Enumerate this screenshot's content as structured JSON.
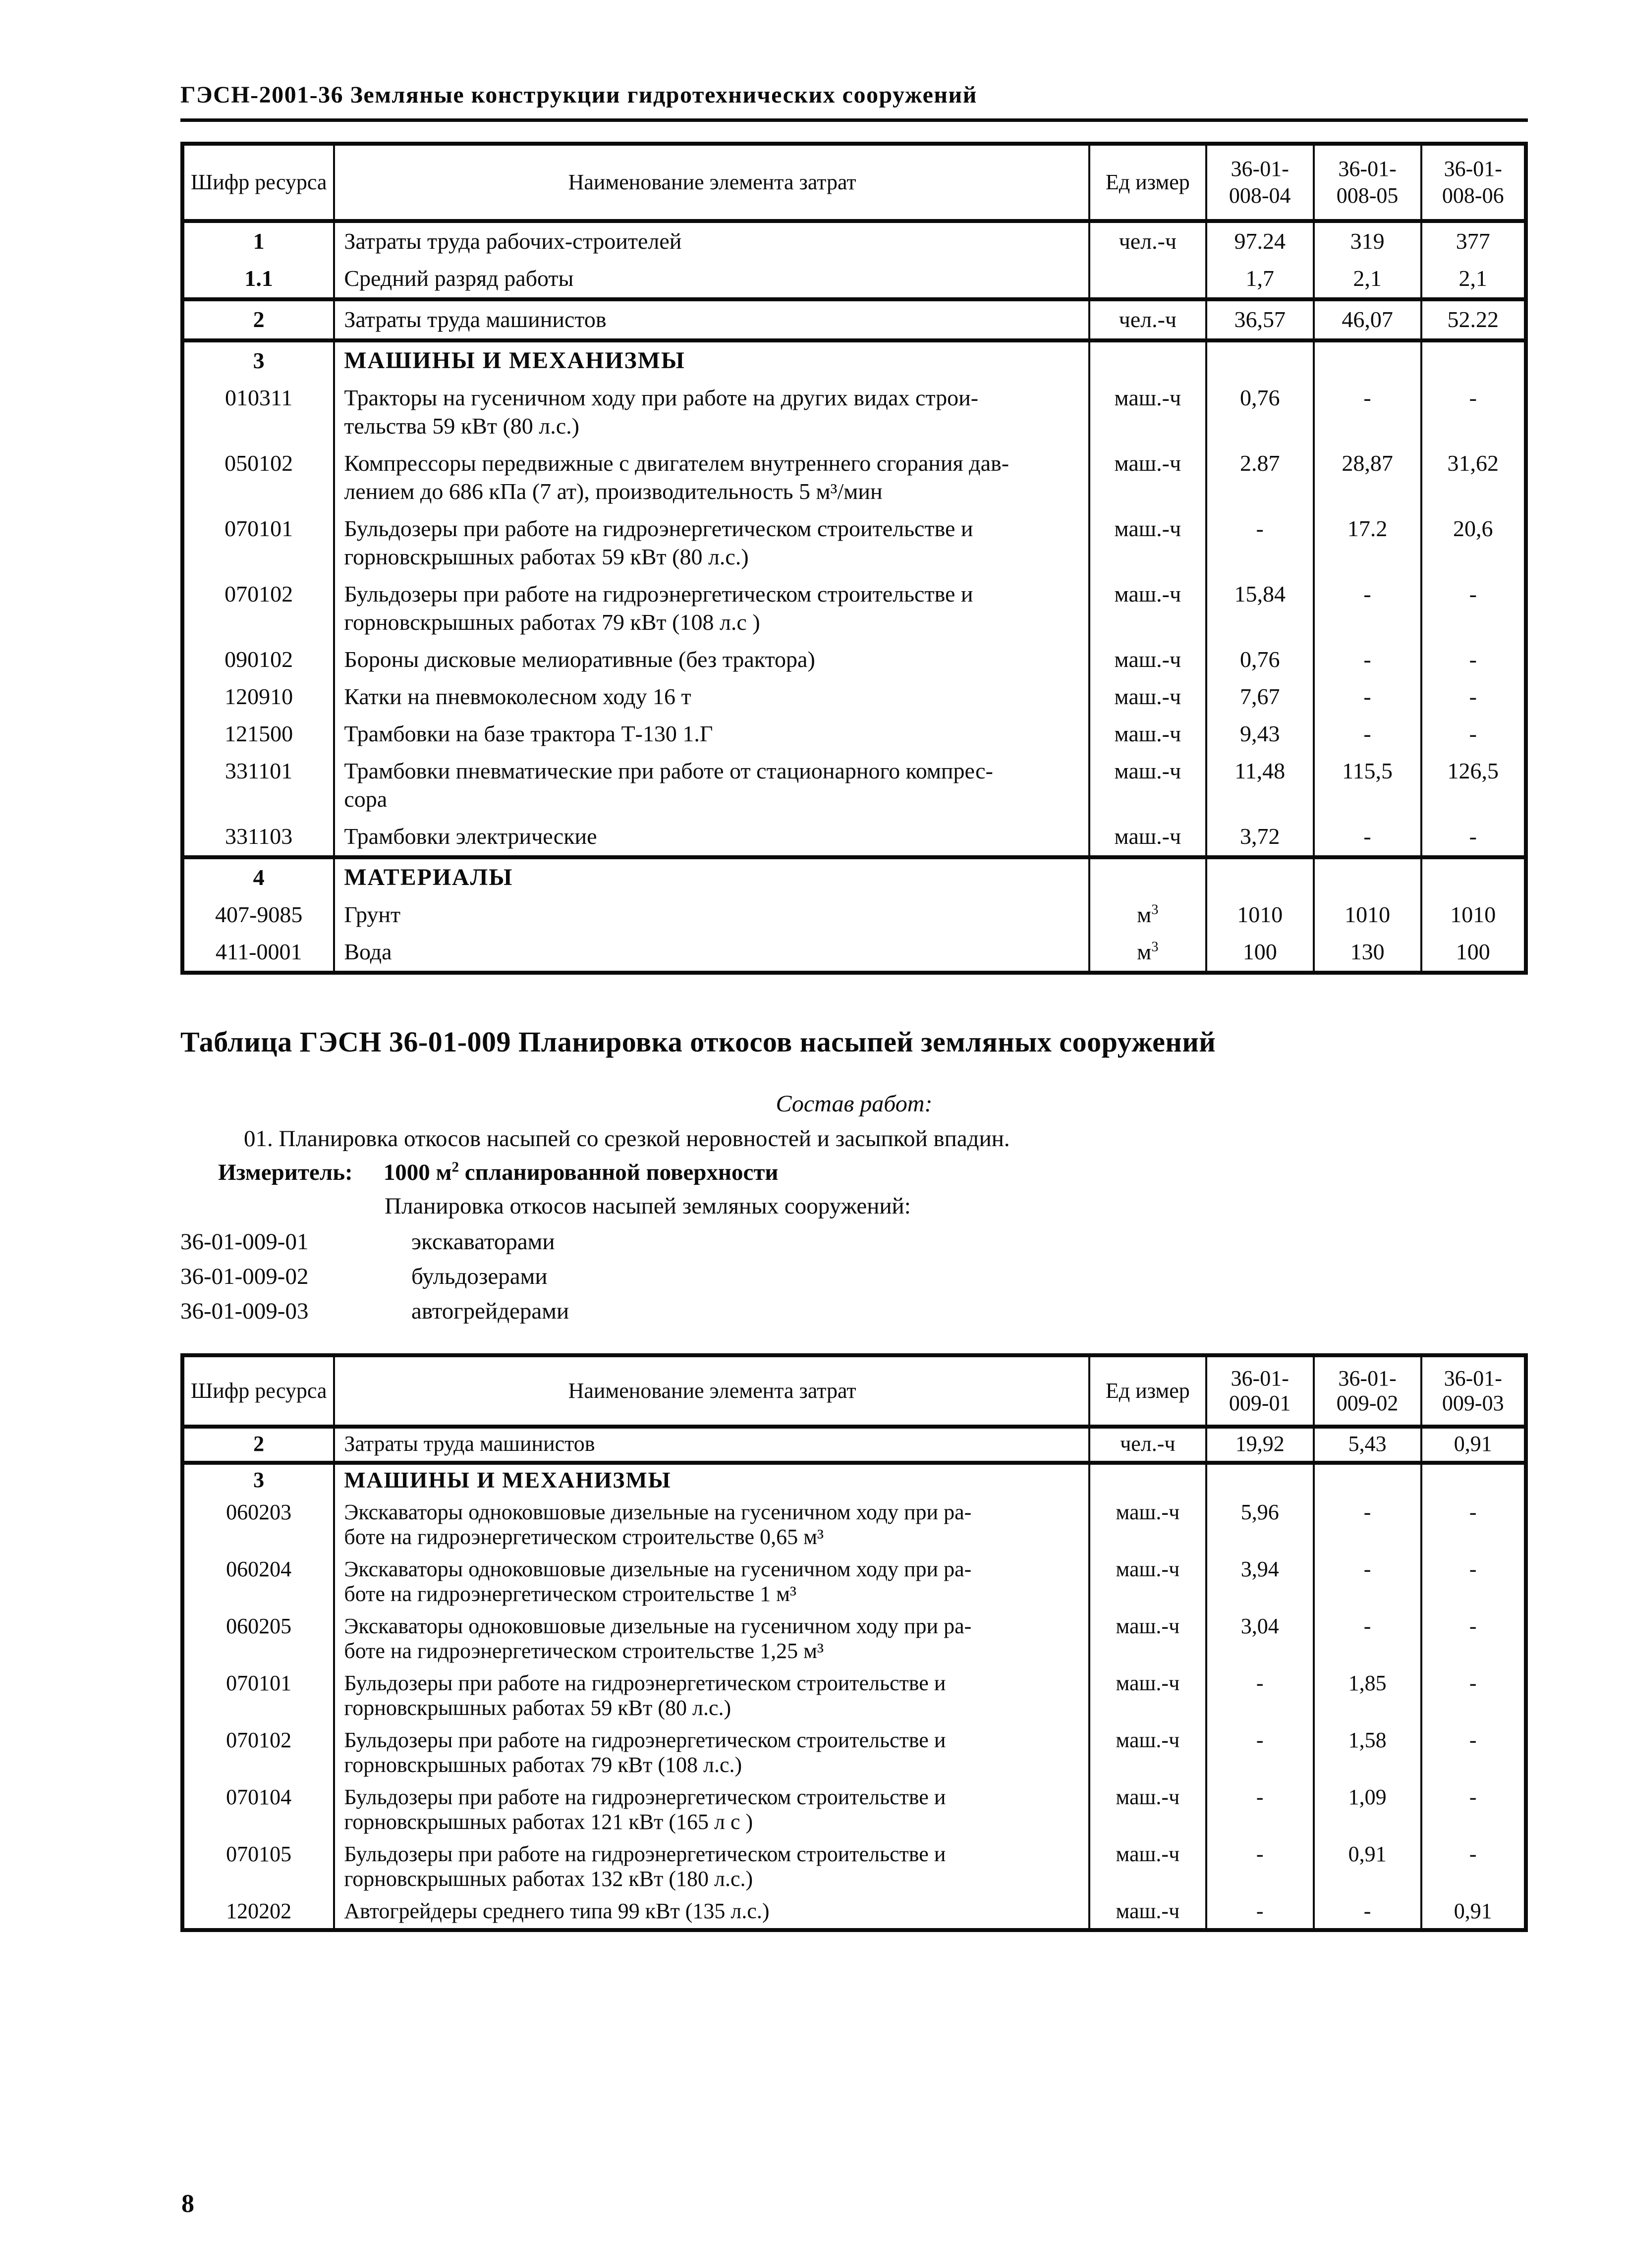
{
  "colors": {
    "ink": "#0b0b0b",
    "paper": "#ffffff"
  },
  "header": {
    "title": "ГЭСН-2001-36 Земляные конструкции гидротехнических сооружений"
  },
  "footer": {
    "page_number": "8"
  },
  "table1": {
    "columns": {
      "code": "Шифр ресурса",
      "name": "Наименование элемента затрат",
      "unit": "Ед измер",
      "groups": [
        [
          "36-01-",
          "008-04"
        ],
        [
          "36-01-",
          "008-05"
        ],
        [
          "36-01-",
          "008-06"
        ]
      ]
    },
    "rows": [
      {
        "cls": "hd",
        "code": "1",
        "name_lines": [
          "Затраты труда рабочих-строителей"
        ],
        "unit": "чел.-ч",
        "unit_sup": "",
        "v1": "97.24",
        "v2": "319",
        "v3": "377"
      },
      {
        "cls": "hd rule",
        "code": "1.1",
        "name_lines": [
          "Средний разряд работы"
        ],
        "unit": "",
        "unit_sup": "",
        "v1": "1,7",
        "v2": "2,1",
        "v3": "2,1"
      },
      {
        "cls": "hd rule",
        "code": "2",
        "name_lines": [
          "Затраты труда машинистов"
        ],
        "unit": "чел.-ч",
        "unit_sup": "",
        "v1": "36,57",
        "v2": "46,07",
        "v3": "52.22"
      },
      {
        "cls": "hd sec",
        "code": "3",
        "name_lines": [
          "МАШИНЫ И МЕХАНИЗМЫ"
        ],
        "unit": "",
        "unit_sup": "",
        "v1": "",
        "v2": "",
        "v3": ""
      },
      {
        "cls": "",
        "code": "010311",
        "name_lines": [
          "Тракторы на гусеничном ходу при работе на других видах строи-",
          "тельства 59 кВт (80 л.с.)"
        ],
        "unit": "маш.-ч",
        "unit_sup": "",
        "v1": "0,76",
        "v2": "-",
        "v3": "-"
      },
      {
        "cls": "",
        "code": "050102",
        "name_lines": [
          "Компрессоры передвижные с двигателем внутреннего сгорания дав-",
          "лением до 686 кПа (7 ат), производительность 5 м³/мин"
        ],
        "unit": "маш.-ч",
        "unit_sup": "",
        "v1": "2.87",
        "v2": "28,87",
        "v3": "31,62"
      },
      {
        "cls": "",
        "code": "070101",
        "name_lines": [
          "Бульдозеры при работе на гидроэнергетическом строительстве и",
          "горновскрышных работах 59 кВт (80 л.с.)"
        ],
        "unit": "маш.-ч",
        "unit_sup": "",
        "v1": "-",
        "v2": "17.2",
        "v3": "20,6"
      },
      {
        "cls": "",
        "code": "070102",
        "name_lines": [
          "Бульдозеры при работе на гидроэнергетическом строительстве и",
          "горновскрышных работах 79 кВт (108 л.с )"
        ],
        "unit": "маш.-ч",
        "unit_sup": "",
        "v1": "15,84",
        "v2": "-",
        "v3": "-"
      },
      {
        "cls": "",
        "code": "090102",
        "name_lines": [
          "Бороны дисковые мелиоративные (без трактора)"
        ],
        "unit": "маш.-ч",
        "unit_sup": "",
        "v1": "0,76",
        "v2": "-",
        "v3": "-"
      },
      {
        "cls": "",
        "code": "120910",
        "name_lines": [
          "Катки на пневмоколесном ходу 16 т"
        ],
        "unit": "маш.-ч",
        "unit_sup": "",
        "v1": "7,67",
        "v2": "-",
        "v3": "-"
      },
      {
        "cls": "",
        "code": "121500",
        "name_lines": [
          "Трамбовки на базе трактора Т-130 1.Г"
        ],
        "unit": "маш.-ч",
        "unit_sup": "",
        "v1": "9,43",
        "v2": "-",
        "v3": "-"
      },
      {
        "cls": "",
        "code": "331101",
        "name_lines": [
          "Трамбовки пневматические при работе от стационарного компрес-",
          "сора"
        ],
        "unit": "маш.-ч",
        "unit_sup": "",
        "v1": "11,48",
        "v2": "115,5",
        "v3": "126,5"
      },
      {
        "cls": "rule",
        "code": "331103",
        "name_lines": [
          "Трамбовки электрические"
        ],
        "unit": "маш.-ч",
        "unit_sup": "",
        "v1": "3,72",
        "v2": "-",
        "v3": "-"
      },
      {
        "cls": "hd sec",
        "code": "4",
        "name_lines": [
          "МАТЕРИАЛЫ"
        ],
        "unit": "",
        "unit_sup": "",
        "v1": "",
        "v2": "",
        "v3": ""
      },
      {
        "cls": "",
        "code": "407-9085",
        "name_lines": [
          "Грунт"
        ],
        "unit": "м",
        "unit_sup": "3",
        "v1": "1010",
        "v2": "1010",
        "v3": "1010"
      },
      {
        "cls": "",
        "code": "411-0001",
        "name_lines": [
          "Вода"
        ],
        "unit": "м",
        "unit_sup": "3",
        "v1": "100",
        "v2": "130",
        "v3": "100"
      }
    ]
  },
  "section": {
    "title": "Таблица ГЭСН 36-01-009 Планировка откосов насыпей земляных сооружений",
    "sostav_label": "Состав работ:",
    "sostav_item": "01. Планировка откосов насыпей со срезкой неровностей и засыпкой впадин.",
    "izmeritel_label": "Измеритель:",
    "izmeritel_value_pre": "1000 м",
    "izmeritel_sup": "2",
    "izmeritel_value_post": " спланированной поверхности",
    "list_intro": "Планировка откосов насыпей земляных сооружений:",
    "variants": [
      {
        "code": "36-01-009-01",
        "label": "экскаваторами"
      },
      {
        "code": "36-01-009-02",
        "label": "бульдозерами"
      },
      {
        "code": "36-01-009-03",
        "label": "автогрейдерами"
      }
    ]
  },
  "table2": {
    "columns": {
      "code": "Шифр ресурса",
      "name": "Наименование элемента затрат",
      "unit": "Ед измер",
      "groups": [
        [
          "36-01-",
          "009-01"
        ],
        [
          "36-01-",
          "009-02"
        ],
        [
          "36-01-",
          "009-03"
        ]
      ]
    },
    "rows": [
      {
        "cls": "hd rule",
        "code": "2",
        "name_lines": [
          "Затраты труда машинистов"
        ],
        "unit": "чел.-ч",
        "unit_sup": "",
        "v1": "19,92",
        "v2": "5,43",
        "v3": "0,91"
      },
      {
        "cls": "hd sec",
        "code": "3",
        "name_lines": [
          "МАШИНЫ И МЕХАНИЗМЫ"
        ],
        "unit": "",
        "unit_sup": "",
        "v1": "",
        "v2": "",
        "v3": ""
      },
      {
        "cls": "",
        "code": "060203",
        "name_lines": [
          "Экскаваторы одноковшовые дизельные на гусеничном ходу при ра-",
          "боте на гидроэнергетическом строительстве 0,65 м³"
        ],
        "unit": "маш.-ч",
        "unit_sup": "",
        "v1": "5,96",
        "v2": "-",
        "v3": "-"
      },
      {
        "cls": "",
        "code": "060204",
        "name_lines": [
          "Экскаваторы одноковшовые дизельные на гусеничном ходу при ра-",
          "боте на гидроэнергетическом строительстве 1 м³"
        ],
        "unit": "маш.-ч",
        "unit_sup": "",
        "v1": "3,94",
        "v2": "-",
        "v3": "-"
      },
      {
        "cls": "",
        "code": "060205",
        "name_lines": [
          "Экскаваторы одноковшовые дизельные на гусеничном ходу при ра-",
          "боте на гидроэнергетическом строительстве 1,25 м³"
        ],
        "unit": "маш.-ч",
        "unit_sup": "",
        "v1": "3,04",
        "v2": "-",
        "v3": "-"
      },
      {
        "cls": "",
        "code": "070101",
        "name_lines": [
          "Бульдозеры при работе на гидроэнергетическом строительстве и",
          "горновскрышных работах 59 кВт (80 л.с.)"
        ],
        "unit": "маш.-ч",
        "unit_sup": "",
        "v1": "-",
        "v2": "1,85",
        "v3": "-"
      },
      {
        "cls": "",
        "code": "070102",
        "name_lines": [
          "Бульдозеры при работе на гидроэнергетическом строительстве и",
          "горновскрышных работах 79 кВт (108 л.с.)"
        ],
        "unit": "маш.-ч",
        "unit_sup": "",
        "v1": "-",
        "v2": "1,58",
        "v3": "-"
      },
      {
        "cls": "",
        "code": "070104",
        "name_lines": [
          "Бульдозеры при работе на гидроэнергетическом строительстве и",
          "горновскрышных работах 121 кВт (165 л с )"
        ],
        "unit": "маш.-ч",
        "unit_sup": "",
        "v1": "-",
        "v2": "1,09",
        "v3": "-"
      },
      {
        "cls": "",
        "code": "070105",
        "name_lines": [
          "Бульдозеры при работе на гидроэнергетическом строительстве и",
          "горновскрышных работах 132 кВт (180 л.с.)"
        ],
        "unit": "маш.-ч",
        "unit_sup": "",
        "v1": "-",
        "v2": "0,91",
        "v3": "-"
      },
      {
        "cls": "",
        "code": "120202",
        "name_lines": [
          "Автогрейдеры среднего типа 99 кВт (135 л.с.)"
        ],
        "unit": "маш.-ч",
        "unit_sup": "",
        "v1": "-",
        "v2": "-",
        "v3": "0,91"
      }
    ]
  }
}
